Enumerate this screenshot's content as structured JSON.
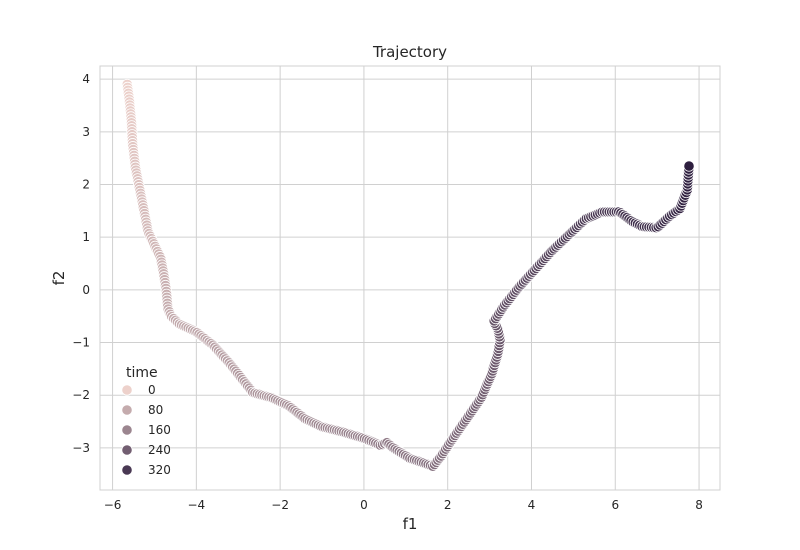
{
  "chart_data": {
    "type": "scatter",
    "title": "Trajectory",
    "xlabel": "f1",
    "ylabel": "f2",
    "xlim": [
      -6.3,
      8.5
    ],
    "ylim": [
      -3.8,
      4.25
    ],
    "xticks": [
      "−6",
      "−4",
      "−2",
      "0",
      "2",
      "4",
      "6",
      "8"
    ],
    "xtick_values": [
      -6,
      -4,
      -2,
      0,
      2,
      4,
      6,
      8
    ],
    "yticks": [
      "−3",
      "−2",
      "−1",
      "0",
      "1",
      "2",
      "3",
      "4"
    ],
    "ytick_values": [
      -3,
      -2,
      -1,
      0,
      1,
      2,
      3,
      4
    ],
    "grid": true,
    "hue": "time",
    "hue_range": [
      0,
      375
    ],
    "color_low": "#edd1cb",
    "color_high": "#2d1e3e",
    "legend": {
      "title": "time",
      "placement": "lower-left",
      "entries": [
        {
          "label": "0",
          "value": 0
        },
        {
          "label": "80",
          "value": 80
        },
        {
          "label": "160",
          "value": 160
        },
        {
          "label": "240",
          "value": 240
        },
        {
          "label": "320",
          "value": 320
        }
      ]
    },
    "path_points": [
      [
        -5.65,
        3.9
      ],
      [
        -5.6,
        3.6
      ],
      [
        -5.55,
        3.2
      ],
      [
        -5.52,
        2.75
      ],
      [
        -5.45,
        2.3
      ],
      [
        -5.35,
        1.9
      ],
      [
        -5.25,
        1.5
      ],
      [
        -5.15,
        1.1
      ],
      [
        -5.0,
        0.85
      ],
      [
        -4.85,
        0.6
      ],
      [
        -4.78,
        0.3
      ],
      [
        -4.72,
        0.0
      ],
      [
        -4.68,
        -0.35
      ],
      [
        -4.6,
        -0.5
      ],
      [
        -4.4,
        -0.65
      ],
      [
        -4.0,
        -0.8
      ],
      [
        -3.6,
        -1.05
      ],
      [
        -3.2,
        -1.4
      ],
      [
        -2.9,
        -1.7
      ],
      [
        -2.65,
        -1.95
      ],
      [
        -2.2,
        -2.05
      ],
      [
        -1.8,
        -2.2
      ],
      [
        -1.4,
        -2.45
      ],
      [
        -1.0,
        -2.6
      ],
      [
        -0.5,
        -2.7
      ],
      [
        0.0,
        -2.82
      ],
      [
        0.4,
        -2.95
      ],
      [
        0.55,
        -2.9
      ],
      [
        0.7,
        -3.0
      ],
      [
        0.9,
        -3.1
      ],
      [
        1.1,
        -3.2
      ],
      [
        1.4,
        -3.28
      ],
      [
        1.65,
        -3.35
      ],
      [
        1.85,
        -3.15
      ],
      [
        2.1,
        -2.85
      ],
      [
        2.45,
        -2.45
      ],
      [
        2.8,
        -2.05
      ],
      [
        3.05,
        -1.6
      ],
      [
        3.2,
        -1.2
      ],
      [
        3.25,
        -0.95
      ],
      [
        3.2,
        -0.75
      ],
      [
        3.1,
        -0.6
      ],
      [
        3.35,
        -0.3
      ],
      [
        3.7,
        0.05
      ],
      [
        4.1,
        0.4
      ],
      [
        4.5,
        0.75
      ],
      [
        4.9,
        1.05
      ],
      [
        5.3,
        1.35
      ],
      [
        5.7,
        1.48
      ],
      [
        6.1,
        1.48
      ],
      [
        6.4,
        1.3
      ],
      [
        6.65,
        1.2
      ],
      [
        7.0,
        1.18
      ],
      [
        7.3,
        1.4
      ],
      [
        7.55,
        1.55
      ],
      [
        7.72,
        1.9
      ],
      [
        7.76,
        2.35
      ]
    ],
    "point_count": 375
  }
}
